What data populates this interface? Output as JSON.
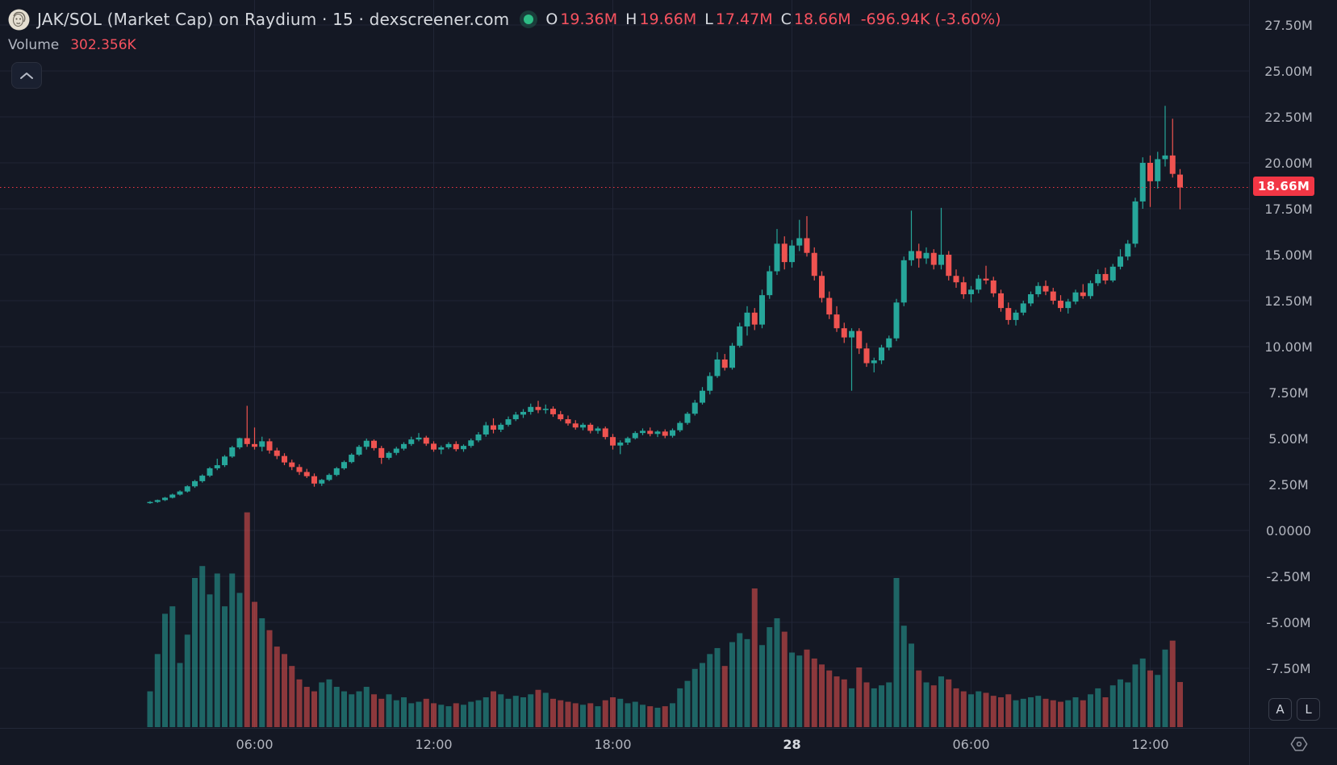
{
  "header": {
    "symbol_title": "JAK/SOL (Market Cap) on Raydium · 15 · dexscreener.com",
    "ohlc": {
      "o_label": "O",
      "o": "19.36M",
      "h_label": "H",
      "h": "19.66M",
      "l_label": "L",
      "l": "17.47M",
      "c_label": "C",
      "c": "18.66M",
      "change": "-696.94K (-3.60%)"
    },
    "volume_label": "Volume",
    "volume_value": "302.356K"
  },
  "price_axis": {
    "ticks": [
      {
        "label": "27.50M",
        "value": 27.5
      },
      {
        "label": "25.00M",
        "value": 25.0
      },
      {
        "label": "22.50M",
        "value": 22.5
      },
      {
        "label": "20.00M",
        "value": 20.0
      },
      {
        "label": "17.50M",
        "value": 17.5
      },
      {
        "label": "15.00M",
        "value": 15.0
      },
      {
        "label": "12.50M",
        "value": 12.5
      },
      {
        "label": "10.00M",
        "value": 10.0
      },
      {
        "label": "7.50M",
        "value": 7.5
      },
      {
        "label": "5.00M",
        "value": 5.0
      },
      {
        "label": "2.50M",
        "value": 2.5
      },
      {
        "label": "0.0000",
        "value": 0.0
      },
      {
        "label": "-2.50M",
        "value": -2.5
      },
      {
        "label": "-5.00M",
        "value": -5.0
      },
      {
        "label": "-7.50M",
        "value": -7.5
      }
    ],
    "current": {
      "label": "18.66M",
      "value": 18.66
    }
  },
  "time_axis": {
    "ticks": [
      {
        "label": "06:00",
        "index": 14,
        "emphasis": false
      },
      {
        "label": "12:00",
        "index": 38,
        "emphasis": false
      },
      {
        "label": "18:00",
        "index": 62,
        "emphasis": false
      },
      {
        "label": "28",
        "index": 86,
        "emphasis": true
      },
      {
        "label": "06:00",
        "index": 110,
        "emphasis": false
      },
      {
        "label": "12:00",
        "index": 134,
        "emphasis": false
      }
    ]
  },
  "axis_buttons": {
    "auto_label": "A",
    "log_label": "L"
  },
  "colors": {
    "background": "#141824",
    "grid": "rgba(34,40,56,0.85)",
    "up": "#26a69a",
    "down": "#ef5350",
    "vol_up": "rgba(38,166,154,0.55)",
    "vol_down": "rgba(239,83,80,0.55)",
    "text_primary": "#d7dae0",
    "text_secondary": "#b2b5be",
    "value_red": "#f7525f",
    "badge_red": "#f23645",
    "status_green": "#2dbd85",
    "border": "#232838"
  },
  "chart_data": {
    "type": "bar",
    "subtype": "candlestick_with_volume",
    "title": "JAK/SOL (Market Cap) on Raydium · 15 · dexscreener.com",
    "pair": "JAK/SOL",
    "metric": "Market Cap",
    "exchange": "Raydium",
    "interval_minutes": 15,
    "source": "dexscreener.com",
    "price_unit": "M (millions, market cap)",
    "volume_unit": "K (thousands)",
    "ylim": [
      -8.75,
      28.6
    ],
    "grid": true,
    "last_close": 18.66,
    "last_candle": {
      "open": "19.36M",
      "high": "19.66M",
      "low": "17.47M",
      "close": "18.66M",
      "volume": "302.356K"
    },
    "ohlcv_columns": [
      "open",
      "high",
      "low",
      "close",
      "volume_k"
    ],
    "candles": [
      [
        1.52,
        1.6,
        1.45,
        1.55,
        240
      ],
      [
        1.55,
        1.68,
        1.5,
        1.65,
        490
      ],
      [
        1.65,
        1.82,
        1.6,
        1.78,
        760
      ],
      [
        1.78,
        2.0,
        1.74,
        1.95,
        810
      ],
      [
        1.95,
        2.18,
        1.9,
        2.12,
        430
      ],
      [
        2.12,
        2.45,
        2.06,
        2.4,
        620
      ],
      [
        2.4,
        2.75,
        2.32,
        2.68,
        1000
      ],
      [
        2.68,
        3.05,
        2.6,
        2.98,
        1080
      ],
      [
        2.98,
        3.45,
        2.9,
        3.38,
        890
      ],
      [
        3.38,
        3.9,
        3.28,
        3.55,
        1030
      ],
      [
        3.55,
        4.1,
        3.45,
        4.02,
        810
      ],
      [
        4.02,
        4.6,
        3.95,
        4.52,
        1030
      ],
      [
        4.52,
        5.05,
        4.42,
        5.02,
        900
      ],
      [
        5.02,
        6.78,
        4.55,
        4.7,
        1440
      ],
      [
        4.7,
        5.6,
        4.4,
        4.55,
        840
      ],
      [
        4.55,
        5.1,
        4.3,
        4.85,
        730
      ],
      [
        4.85,
        5.0,
        4.18,
        4.35,
        650
      ],
      [
        4.35,
        4.5,
        3.88,
        4.05,
        540
      ],
      [
        4.05,
        4.2,
        3.55,
        3.7,
        490
      ],
      [
        3.7,
        3.85,
        3.28,
        3.45,
        410
      ],
      [
        3.45,
        3.6,
        3.02,
        3.18,
        320
      ],
      [
        3.18,
        3.35,
        2.85,
        2.95,
        270
      ],
      [
        2.95,
        3.1,
        2.38,
        2.55,
        240
      ],
      [
        2.55,
        2.8,
        2.42,
        2.75,
        300
      ],
      [
        2.75,
        3.1,
        2.68,
        3.02,
        320
      ],
      [
        3.02,
        3.45,
        2.95,
        3.38,
        270
      ],
      [
        3.38,
        3.8,
        3.3,
        3.72,
        240
      ],
      [
        3.72,
        4.2,
        3.65,
        4.12,
        220
      ],
      [
        4.12,
        4.65,
        4.05,
        4.55,
        240
      ],
      [
        4.55,
        5.0,
        4.4,
        4.88,
        270
      ],
      [
        4.88,
        4.95,
        4.35,
        4.48,
        220
      ],
      [
        4.48,
        4.6,
        3.62,
        3.95,
        190
      ],
      [
        3.95,
        4.3,
        3.85,
        4.22,
        220
      ],
      [
        4.22,
        4.55,
        4.1,
        4.45,
        180
      ],
      [
        4.45,
        4.8,
        4.35,
        4.7,
        200
      ],
      [
        4.7,
        5.1,
        4.6,
        4.95,
        160
      ],
      [
        4.95,
        5.3,
        4.85,
        5.05,
        170
      ],
      [
        5.05,
        5.15,
        4.6,
        4.72,
        190
      ],
      [
        4.72,
        4.85,
        4.28,
        4.4,
        160
      ],
      [
        4.4,
        4.62,
        4.15,
        4.52,
        150
      ],
      [
        4.52,
        4.8,
        4.42,
        4.7,
        140
      ],
      [
        4.7,
        4.85,
        4.3,
        4.42,
        160
      ],
      [
        4.42,
        4.68,
        4.28,
        4.6,
        150
      ],
      [
        4.6,
        5.0,
        4.5,
        4.9,
        170
      ],
      [
        4.9,
        5.35,
        4.8,
        5.22,
        180
      ],
      [
        5.22,
        5.9,
        5.1,
        5.72,
        200
      ],
      [
        5.72,
        6.1,
        5.28,
        5.48,
        240
      ],
      [
        5.48,
        5.85,
        5.35,
        5.75,
        220
      ],
      [
        5.75,
        6.2,
        5.65,
        6.05,
        190
      ],
      [
        6.05,
        6.45,
        5.95,
        6.3,
        210
      ],
      [
        6.3,
        6.6,
        6.12,
        6.45,
        200
      ],
      [
        6.45,
        6.9,
        6.3,
        6.72,
        220
      ],
      [
        6.72,
        7.05,
        6.38,
        6.55,
        250
      ],
      [
        6.55,
        6.85,
        6.35,
        6.62,
        230
      ],
      [
        6.62,
        6.75,
        6.18,
        6.32,
        190
      ],
      [
        6.32,
        6.5,
        5.95,
        6.05,
        180
      ],
      [
        6.05,
        6.25,
        5.7,
        5.82,
        170
      ],
      [
        5.82,
        6.0,
        5.48,
        5.6,
        160
      ],
      [
        5.6,
        5.85,
        5.45,
        5.75,
        150
      ],
      [
        5.75,
        5.85,
        5.28,
        5.42,
        160
      ],
      [
        5.42,
        5.65,
        5.26,
        5.55,
        140
      ],
      [
        5.55,
        5.65,
        4.95,
        5.08,
        180
      ],
      [
        5.08,
        5.25,
        4.4,
        4.62,
        200
      ],
      [
        4.62,
        4.9,
        4.15,
        4.78,
        190
      ],
      [
        4.78,
        5.1,
        4.65,
        5.02,
        160
      ],
      [
        5.02,
        5.4,
        4.95,
        5.3,
        170
      ],
      [
        5.3,
        5.55,
        5.18,
        5.42,
        150
      ],
      [
        5.42,
        5.6,
        5.12,
        5.25,
        140
      ],
      [
        5.25,
        5.45,
        5.08,
        5.38,
        130
      ],
      [
        5.38,
        5.5,
        5.02,
        5.15,
        140
      ],
      [
        5.15,
        5.55,
        5.05,
        5.45,
        160
      ],
      [
        5.45,
        5.95,
        5.35,
        5.85,
        260
      ],
      [
        5.85,
        6.45,
        5.75,
        6.35,
        310
      ],
      [
        6.35,
        7.1,
        6.25,
        6.95,
        390
      ],
      [
        6.95,
        7.8,
        6.85,
        7.6,
        430
      ],
      [
        7.6,
        8.6,
        7.4,
        8.4,
        490
      ],
      [
        8.4,
        9.7,
        8.3,
        9.3,
        530
      ],
      [
        9.3,
        9.6,
        8.7,
        8.85,
        410
      ],
      [
        8.85,
        10.2,
        8.75,
        10.05,
        570
      ],
      [
        10.05,
        11.3,
        9.95,
        11.1,
        630
      ],
      [
        11.1,
        12.2,
        10.6,
        11.85,
        590
      ],
      [
        11.85,
        12.1,
        10.9,
        11.2,
        930
      ],
      [
        11.2,
        13.1,
        11.0,
        12.8,
        550
      ],
      [
        12.8,
        14.4,
        12.6,
        14.1,
        670
      ],
      [
        14.1,
        16.4,
        13.9,
        15.6,
        730
      ],
      [
        15.6,
        16.0,
        14.2,
        14.6,
        640
      ],
      [
        14.6,
        15.8,
        14.3,
        15.5,
        500
      ],
      [
        15.5,
        16.9,
        15.2,
        15.9,
        480
      ],
      [
        15.9,
        17.1,
        14.9,
        15.1,
        520
      ],
      [
        15.1,
        15.4,
        13.6,
        13.85,
        460
      ],
      [
        13.85,
        14.1,
        12.4,
        12.65,
        420
      ],
      [
        12.65,
        13.0,
        11.5,
        11.75,
        380
      ],
      [
        11.75,
        12.2,
        10.8,
        11.0,
        340
      ],
      [
        11.0,
        11.3,
        10.2,
        10.5,
        320
      ],
      [
        10.5,
        11.0,
        7.6,
        10.85,
        260
      ],
      [
        10.85,
        11.0,
        9.6,
        9.9,
        400
      ],
      [
        9.9,
        10.2,
        8.9,
        9.1,
        300
      ],
      [
        9.1,
        9.4,
        8.6,
        9.25,
        260
      ],
      [
        9.25,
        10.1,
        9.05,
        9.95,
        280
      ],
      [
        9.95,
        10.6,
        9.8,
        10.45,
        300
      ],
      [
        10.45,
        12.6,
        10.3,
        12.4,
        1000
      ],
      [
        12.4,
        14.9,
        12.2,
        14.7,
        680
      ],
      [
        14.7,
        17.4,
        14.4,
        15.2,
        560
      ],
      [
        15.2,
        15.6,
        14.3,
        14.8,
        380
      ],
      [
        14.8,
        15.4,
        14.5,
        15.1,
        300
      ],
      [
        15.1,
        15.3,
        14.2,
        14.45,
        280
      ],
      [
        14.45,
        17.55,
        14.2,
        15.0,
        340
      ],
      [
        15.0,
        15.2,
        13.6,
        13.85,
        320
      ],
      [
        13.85,
        14.2,
        13.2,
        13.5,
        260
      ],
      [
        13.5,
        13.8,
        12.6,
        12.85,
        240
      ],
      [
        12.85,
        13.3,
        12.4,
        13.1,
        220
      ],
      [
        13.1,
        13.9,
        12.9,
        13.7,
        240
      ],
      [
        13.7,
        14.4,
        13.4,
        13.6,
        230
      ],
      [
        13.6,
        13.8,
        12.7,
        12.9,
        210
      ],
      [
        12.9,
        13.1,
        11.9,
        12.1,
        200
      ],
      [
        12.1,
        12.4,
        11.2,
        11.45,
        220
      ],
      [
        11.45,
        12.0,
        11.15,
        11.85,
        180
      ],
      [
        11.85,
        12.5,
        11.7,
        12.35,
        190
      ],
      [
        12.35,
        13.0,
        12.2,
        12.85,
        200
      ],
      [
        12.85,
        13.5,
        12.7,
        13.3,
        210
      ],
      [
        13.3,
        13.6,
        12.8,
        13.0,
        190
      ],
      [
        13.0,
        13.2,
        12.3,
        12.5,
        180
      ],
      [
        12.5,
        12.8,
        11.9,
        12.1,
        170
      ],
      [
        12.1,
        12.6,
        11.8,
        12.45,
        180
      ],
      [
        12.45,
        13.1,
        12.3,
        12.95,
        200
      ],
      [
        12.95,
        13.4,
        12.6,
        12.75,
        180
      ],
      [
        12.75,
        13.6,
        12.6,
        13.45,
        220
      ],
      [
        13.45,
        14.2,
        13.3,
        13.95,
        260
      ],
      [
        13.95,
        14.3,
        13.4,
        13.6,
        200
      ],
      [
        13.6,
        14.5,
        13.5,
        14.35,
        280
      ],
      [
        14.35,
        15.3,
        14.2,
        14.9,
        320
      ],
      [
        14.9,
        15.8,
        14.7,
        15.6,
        300
      ],
      [
        15.6,
        18.1,
        15.4,
        17.9,
        420
      ],
      [
        17.9,
        20.3,
        17.5,
        20.0,
        460
      ],
      [
        20.0,
        20.4,
        17.6,
        19.0,
        380
      ],
      [
        19.0,
        20.6,
        18.6,
        20.2,
        350
      ],
      [
        20.2,
        23.1,
        19.8,
        20.4,
        520
      ],
      [
        20.4,
        22.4,
        19.2,
        19.4,
        580
      ],
      [
        19.36,
        19.66,
        17.47,
        18.66,
        302.356
      ]
    ]
  }
}
